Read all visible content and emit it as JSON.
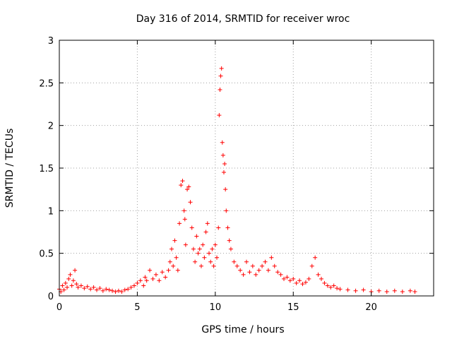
{
  "chart_data": {
    "type": "scatter",
    "title": "Day 316 of 2014, SRMTID for receiver wroc",
    "xlabel": "GPS time / hours",
    "ylabel": "SRMTID / TECUs",
    "xlim": [
      0,
      24
    ],
    "ylim": [
      0,
      3
    ],
    "xticks": [
      0,
      5,
      10,
      15,
      20
    ],
    "xtick_labels": [
      "0",
      "5",
      "10",
      "15",
      "20"
    ],
    "yticks": [
      0,
      0.5,
      1,
      1.5,
      2,
      2.5,
      3
    ],
    "ytick_labels": [
      "0",
      "0.5",
      "1",
      "1.5",
      "2",
      "2.5",
      "3"
    ],
    "grid": true,
    "marker": "plus",
    "color": "#ff0000",
    "series": [
      {
        "name": "SRMTID",
        "points": [
          [
            0.0,
            0.08
          ],
          [
            0.1,
            0.05
          ],
          [
            0.2,
            0.12
          ],
          [
            0.3,
            0.07
          ],
          [
            0.4,
            0.15
          ],
          [
            0.5,
            0.1
          ],
          [
            0.6,
            0.2
          ],
          [
            0.7,
            0.25
          ],
          [
            0.8,
            0.12
          ],
          [
            0.9,
            0.18
          ],
          [
            1.0,
            0.3
          ],
          [
            1.1,
            0.14
          ],
          [
            1.2,
            0.1
          ],
          [
            1.4,
            0.12
          ],
          [
            1.6,
            0.09
          ],
          [
            1.8,
            0.11
          ],
          [
            2.0,
            0.08
          ],
          [
            2.2,
            0.1
          ],
          [
            2.4,
            0.07
          ],
          [
            2.6,
            0.09
          ],
          [
            2.8,
            0.06
          ],
          [
            3.0,
            0.08
          ],
          [
            3.2,
            0.07
          ],
          [
            3.4,
            0.06
          ],
          [
            3.6,
            0.05
          ],
          [
            3.8,
            0.06
          ],
          [
            4.0,
            0.05
          ],
          [
            4.2,
            0.07
          ],
          [
            4.4,
            0.08
          ],
          [
            4.6,
            0.1
          ],
          [
            4.8,
            0.12
          ],
          [
            5.0,
            0.15
          ],
          [
            5.2,
            0.18
          ],
          [
            5.4,
            0.12
          ],
          [
            5.5,
            0.22
          ],
          [
            5.6,
            0.18
          ],
          [
            5.8,
            0.3
          ],
          [
            6.0,
            0.2
          ],
          [
            6.2,
            0.25
          ],
          [
            6.4,
            0.18
          ],
          [
            6.6,
            0.28
          ],
          [
            6.8,
            0.22
          ],
          [
            7.0,
            0.3
          ],
          [
            7.1,
            0.4
          ],
          [
            7.2,
            0.55
          ],
          [
            7.3,
            0.35
          ],
          [
            7.4,
            0.65
          ],
          [
            7.5,
            0.45
          ],
          [
            7.6,
            0.3
          ],
          [
            7.7,
            0.85
          ],
          [
            7.8,
            1.3
          ],
          [
            7.9,
            1.35
          ],
          [
            8.0,
            1.0
          ],
          [
            8.05,
            0.9
          ],
          [
            8.1,
            0.6
          ],
          [
            8.2,
            1.25
          ],
          [
            8.3,
            1.28
          ],
          [
            8.4,
            1.1
          ],
          [
            8.5,
            0.8
          ],
          [
            8.6,
            0.55
          ],
          [
            8.7,
            0.4
          ],
          [
            8.8,
            0.7
          ],
          [
            8.9,
            0.5
          ],
          [
            9.0,
            0.55
          ],
          [
            9.1,
            0.35
          ],
          [
            9.2,
            0.6
          ],
          [
            9.3,
            0.45
          ],
          [
            9.4,
            0.75
          ],
          [
            9.5,
            0.85
          ],
          [
            9.6,
            0.5
          ],
          [
            9.7,
            0.4
          ],
          [
            9.8,
            0.55
          ],
          [
            9.9,
            0.35
          ],
          [
            10.0,
            0.6
          ],
          [
            10.1,
            0.45
          ],
          [
            10.2,
            0.8
          ],
          [
            10.25,
            2.12
          ],
          [
            10.3,
            2.42
          ],
          [
            10.35,
            2.58
          ],
          [
            10.4,
            2.67
          ],
          [
            10.45,
            1.8
          ],
          [
            10.5,
            1.65
          ],
          [
            10.55,
            1.45
          ],
          [
            10.6,
            1.55
          ],
          [
            10.65,
            1.25
          ],
          [
            10.7,
            1.0
          ],
          [
            10.8,
            0.8
          ],
          [
            10.9,
            0.65
          ],
          [
            11.0,
            0.55
          ],
          [
            11.2,
            0.4
          ],
          [
            11.4,
            0.35
          ],
          [
            11.6,
            0.3
          ],
          [
            11.8,
            0.25
          ],
          [
            12.0,
            0.4
          ],
          [
            12.2,
            0.28
          ],
          [
            12.4,
            0.35
          ],
          [
            12.6,
            0.25
          ],
          [
            12.8,
            0.3
          ],
          [
            13.0,
            0.35
          ],
          [
            13.2,
            0.4
          ],
          [
            13.4,
            0.3
          ],
          [
            13.6,
            0.45
          ],
          [
            13.8,
            0.35
          ],
          [
            14.0,
            0.28
          ],
          [
            14.2,
            0.25
          ],
          [
            14.4,
            0.2
          ],
          [
            14.6,
            0.22
          ],
          [
            14.8,
            0.18
          ],
          [
            15.0,
            0.2
          ],
          [
            15.2,
            0.15
          ],
          [
            15.4,
            0.18
          ],
          [
            15.6,
            0.14
          ],
          [
            15.8,
            0.16
          ],
          [
            16.0,
            0.2
          ],
          [
            16.2,
            0.35
          ],
          [
            16.4,
            0.45
          ],
          [
            16.6,
            0.25
          ],
          [
            16.8,
            0.2
          ],
          [
            17.0,
            0.15
          ],
          [
            17.2,
            0.12
          ],
          [
            17.4,
            0.1
          ],
          [
            17.6,
            0.12
          ],
          [
            17.8,
            0.09
          ],
          [
            18.0,
            0.08
          ],
          [
            18.5,
            0.07
          ],
          [
            19.0,
            0.06
          ],
          [
            19.5,
            0.07
          ],
          [
            20.0,
            0.05
          ],
          [
            20.5,
            0.06
          ],
          [
            21.0,
            0.05
          ],
          [
            21.5,
            0.06
          ],
          [
            22.0,
            0.05
          ],
          [
            22.5,
            0.06
          ],
          [
            22.8,
            0.05
          ]
        ]
      }
    ]
  }
}
